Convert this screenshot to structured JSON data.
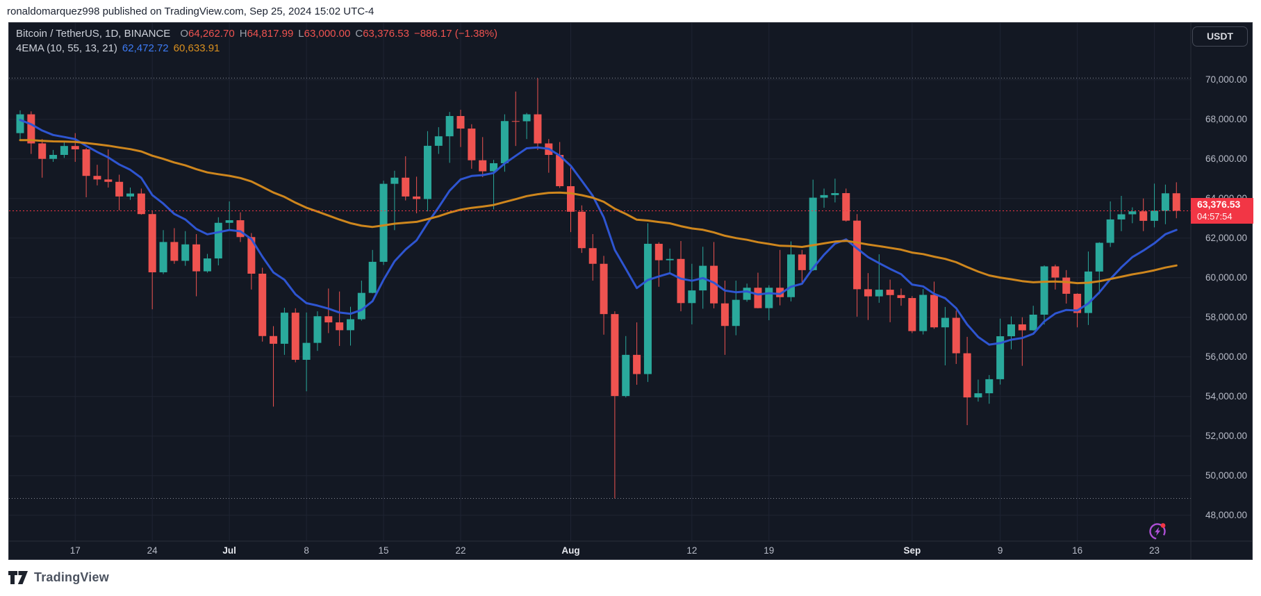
{
  "page": {
    "top_bar": "ronaldomarquez998 published on TradingView.com, Sep 25, 2024 15:02 UTC-4",
    "footer_brand": "TradingView"
  },
  "header": {
    "symbol": "Bitcoin / TetherUS, 1D, BINANCE",
    "ohlc": [
      {
        "label": "O",
        "value": "64,262.70"
      },
      {
        "label": "H",
        "value": "64,817.99"
      },
      {
        "label": "L",
        "value": "63,000.00"
      },
      {
        "label": "C",
        "value": "63,376.53"
      }
    ],
    "change": "−886.17 (−1.38%)",
    "indicator": {
      "name": "4EMA (10, 55, 13, 21)",
      "value_fast": "62,472.72",
      "value_slow": "60,633.91"
    }
  },
  "price_axis": {
    "currency_button": "USDT",
    "ticks": [
      {
        "value": 70000,
        "label": "70,000.00"
      },
      {
        "value": 68000,
        "label": "68,000.00"
      },
      {
        "value": 66000,
        "label": "66,000.00"
      },
      {
        "value": 64000,
        "label": "64,000.00"
      },
      {
        "value": 62000,
        "label": "62,000.00"
      },
      {
        "value": 60000,
        "label": "60,000.00"
      },
      {
        "value": 58000,
        "label": "58,000.00"
      },
      {
        "value": 56000,
        "label": "56,000.00"
      },
      {
        "value": 54000,
        "label": "54,000.00"
      },
      {
        "value": 52000,
        "label": "52,000.00"
      },
      {
        "value": 50000,
        "label": "50,000.00"
      },
      {
        "value": 48000,
        "label": "48,000.00"
      }
    ],
    "last_price": {
      "value": 63376.53,
      "price_label": "63,376.53",
      "countdown": "04:57:54",
      "bg": "#f23645"
    }
  },
  "time_axis": {
    "ticks": [
      {
        "label": "17",
        "day": 5
      },
      {
        "label": "24",
        "day": 12
      },
      {
        "label": "Jul",
        "day": 19,
        "month": true
      },
      {
        "label": "8",
        "day": 26
      },
      {
        "label": "15",
        "day": 33
      },
      {
        "label": "22",
        "day": 40
      },
      {
        "label": "Aug",
        "day": 50,
        "month": true
      },
      {
        "label": "12",
        "day": 61
      },
      {
        "label": "19",
        "day": 68
      },
      {
        "label": "Sep",
        "day": 81,
        "month": true
      },
      {
        "label": "9",
        "day": 89
      },
      {
        "label": "16",
        "day": 96
      },
      {
        "label": "23",
        "day": 103
      }
    ]
  },
  "chart_data": {
    "type": "candlestick",
    "title": "Bitcoin / TetherUS, 1D, BINANCE",
    "ylim": [
      47500,
      71500
    ],
    "grid": true,
    "colors": {
      "up": "#2aa99c",
      "down": "#ef5350",
      "ema_fast": "#2e55d1",
      "ema_slow": "#ce861d",
      "last_price": "#f23645",
      "range_dotted": "#8a8e99",
      "grid": "#1f2433",
      "axis_text": "#b8bcc8",
      "axis_month_text": "#e6e8ee"
    },
    "emas": [
      {
        "period": 10,
        "seed": 67900,
        "color_key": "ema_fast",
        "last_value": 62472.72
      },
      {
        "period": 55,
        "seed": 66900,
        "color_key": "ema_slow",
        "last_value": 60633.91
      }
    ],
    "candles": [
      [
        "Jun 12",
        67300,
        68450,
        66970,
        68250
      ],
      [
        "Jun 13",
        68250,
        68400,
        66250,
        66780
      ],
      [
        "Jun 14",
        66780,
        67000,
        65050,
        66000
      ],
      [
        "Jun 15",
        66000,
        66450,
        65850,
        66200
      ],
      [
        "Jun 16",
        66200,
        66850,
        66050,
        66650
      ],
      [
        "Jun 17",
        66650,
        67300,
        65850,
        66480
      ],
      [
        "Jun 18",
        66480,
        66550,
        64060,
        65140
      ],
      [
        "Jun 19",
        65140,
        65700,
        64660,
        64960
      ],
      [
        "Jun 20",
        64960,
        66480,
        64550,
        64840
      ],
      [
        "Jun 21",
        64840,
        65200,
        63400,
        64100
      ],
      [
        "Jun 22",
        64100,
        64550,
        63930,
        64250
      ],
      [
        "Jun 23",
        64250,
        64500,
        63180,
        63210
      ],
      [
        "Jun 24",
        63210,
        63370,
        58400,
        60270
      ],
      [
        "Jun 25",
        60270,
        62400,
        60180,
        61800
      ],
      [
        "Jun 26",
        61800,
        62500,
        60700,
        60850
      ],
      [
        "Jun 27",
        60850,
        62350,
        60600,
        61680
      ],
      [
        "Jun 28",
        61680,
        62200,
        59060,
        60320
      ],
      [
        "Jun 29",
        60320,
        61200,
        60250,
        60970
      ],
      [
        "Jun 30",
        60970,
        63050,
        60620,
        62770
      ],
      [
        "Jul 1",
        62770,
        63850,
        62450,
        62900
      ],
      [
        "Jul 2",
        62900,
        63300,
        61800,
        62050
      ],
      [
        "Jul 3",
        62050,
        62250,
        59400,
        60200
      ],
      [
        "Jul 4",
        60200,
        60500,
        56770,
        57050
      ],
      [
        "Jul 5",
        57050,
        57550,
        53485,
        56660
      ],
      [
        "Jul 6",
        56660,
        58480,
        56100,
        58230
      ],
      [
        "Jul 7",
        58230,
        58450,
        55725,
        55850
      ],
      [
        "Jul 8",
        55850,
        58240,
        54260,
        56705
      ],
      [
        "Jul 9",
        56705,
        58300,
        56300,
        58050
      ],
      [
        "Jul 10",
        58050,
        59450,
        57200,
        57740
      ],
      [
        "Jul 11",
        57740,
        59300,
        56550,
        57345
      ],
      [
        "Jul 12",
        57345,
        58530,
        56570,
        57900
      ],
      [
        "Jul 13",
        57900,
        59850,
        57830,
        59230
      ],
      [
        "Jul 14",
        59230,
        61400,
        59210,
        60800
      ],
      [
        "Jul 15",
        60800,
        64900,
        60640,
        64740
      ],
      [
        "Jul 16",
        64740,
        65400,
        62400,
        65050
      ],
      [
        "Jul 17",
        65050,
        66130,
        63900,
        64100
      ],
      [
        "Jul 18",
        64100,
        65100,
        63250,
        63970
      ],
      [
        "Jul 19",
        63970,
        67400,
        63350,
        66660
      ],
      [
        "Jul 20",
        66660,
        67600,
        66250,
        67140
      ],
      [
        "Jul 21",
        67140,
        68370,
        65800,
        68165
      ],
      [
        "Jul 22",
        68165,
        68480,
        66600,
        67530
      ],
      [
        "Jul 23",
        67530,
        67750,
        65500,
        65930
      ],
      [
        "Jul 24",
        65930,
        67100,
        65080,
        65372
      ],
      [
        "Jul 25",
        65372,
        65950,
        63450,
        65780
      ],
      [
        "Jul 26",
        65780,
        68250,
        65350,
        67910
      ],
      [
        "Jul 27",
        67910,
        69400,
        66650,
        67900
      ],
      [
        "Jul 28",
        67900,
        68320,
        67000,
        68250
      ],
      [
        "Jul 29",
        68250,
        70080,
        66450,
        66780
      ],
      [
        "Jul 30",
        66780,
        67000,
        65300,
        66200
      ],
      [
        "Jul 31",
        66200,
        66850,
        64530,
        64620
      ],
      [
        "Aug 1",
        64620,
        65600,
        62300,
        63330
      ],
      [
        "Aug 2",
        63330,
        63650,
        61250,
        61490
      ],
      [
        "Aug 3",
        61490,
        62200,
        59850,
        60700
      ],
      [
        "Aug 4",
        60700,
        61100,
        57120,
        58160
      ],
      [
        "Aug 5",
        58160,
        58300,
        48850,
        54020
      ],
      [
        "Aug 6",
        54020,
        57050,
        53950,
        56100
      ],
      [
        "Aug 7",
        56100,
        57740,
        54590,
        55130
      ],
      [
        "Aug 8",
        55130,
        62750,
        54730,
        61710
      ],
      [
        "Aug 9",
        61710,
        61790,
        59540,
        60880
      ],
      [
        "Aug 10",
        60880,
        61470,
        60250,
        60945
      ],
      [
        "Aug 11",
        60945,
        61850,
        58300,
        58715
      ],
      [
        "Aug 12",
        58715,
        60700,
        57640,
        59355
      ],
      [
        "Aug 13",
        59355,
        61560,
        58430,
        60600
      ],
      [
        "Aug 14",
        60600,
        61800,
        58450,
        58700
      ],
      [
        "Aug 15",
        58700,
        59850,
        56100,
        57560
      ],
      [
        "Aug 16",
        57560,
        59850,
        57090,
        58880
      ],
      [
        "Aug 17",
        58880,
        59700,
        58785,
        59490
      ],
      [
        "Aug 18",
        59490,
        60250,
        58450,
        58460
      ],
      [
        "Aug 19",
        58460,
        59615,
        57850,
        59490
      ],
      [
        "Aug 20",
        59490,
        61400,
        58600,
        59015
      ],
      [
        "Aug 21",
        59015,
        61830,
        58800,
        61170
      ],
      [
        "Aug 22",
        61170,
        61400,
        59750,
        60380
      ],
      [
        "Aug 23",
        60380,
        64950,
        60340,
        64040
      ],
      [
        "Aug 24",
        64040,
        64500,
        63530,
        64170
      ],
      [
        "Aug 25",
        64170,
        65000,
        63800,
        64270
      ],
      [
        "Aug 26",
        64270,
        64500,
        62830,
        62880
      ],
      [
        "Aug 27",
        62880,
        63210,
        58030,
        59415
      ],
      [
        "Aug 28",
        59415,
        60230,
        57860,
        59055
      ],
      [
        "Aug 29",
        59055,
        61180,
        58730,
        59390
      ],
      [
        "Aug 30",
        59390,
        59900,
        57750,
        59120
      ],
      [
        "Aug 31",
        59120,
        59450,
        58580,
        58970
      ],
      [
        "Sep 1",
        58970,
        59070,
        57200,
        57300
      ],
      [
        "Sep 2",
        57300,
        59425,
        57130,
        59130
      ],
      [
        "Sep 3",
        59130,
        59800,
        57415,
        57490
      ],
      [
        "Sep 4",
        57490,
        58520,
        55570,
        57970
      ],
      [
        "Sep 5",
        57970,
        58330,
        55640,
        56180
      ],
      [
        "Sep 6",
        56180,
        57010,
        52550,
        53950
      ],
      [
        "Sep 7",
        53950,
        54850,
        53740,
        54160
      ],
      [
        "Sep 8",
        54160,
        55080,
        53630,
        54870
      ],
      [
        "Sep 9",
        54870,
        57930,
        54600,
        57040
      ],
      [
        "Sep 10",
        57040,
        58040,
        56380,
        57640
      ],
      [
        "Sep 11",
        57640,
        58000,
        55545,
        57340
      ],
      [
        "Sep 12",
        57340,
        58580,
        57320,
        58130
      ],
      [
        "Sep 13",
        58130,
        60620,
        57630,
        60570
      ],
      [
        "Sep 14",
        60570,
        60660,
        59400,
        60005
      ],
      [
        "Sep 15",
        60005,
        60380,
        58690,
        59185
      ],
      [
        "Sep 16",
        59185,
        59210,
        57490,
        58215
      ],
      [
        "Sep 17",
        58215,
        61320,
        57610,
        60310
      ],
      [
        "Sep 18",
        60310,
        61790,
        59170,
        61760
      ],
      [
        "Sep 19",
        61760,
        63850,
        61550,
        62940
      ],
      [
        "Sep 20",
        62940,
        64130,
        62350,
        63200
      ],
      [
        "Sep 21",
        63200,
        63550,
        62750,
        63350
      ],
      [
        "Sep 22",
        63350,
        64000,
        62350,
        62870
      ],
      [
        "Sep 23",
        62870,
        64750,
        62540,
        63380
      ],
      [
        "Sep 24",
        63380,
        64700,
        62700,
        64260
      ],
      [
        "Sep 25",
        64262.7,
        64817.99,
        63000,
        63376.53
      ]
    ]
  }
}
